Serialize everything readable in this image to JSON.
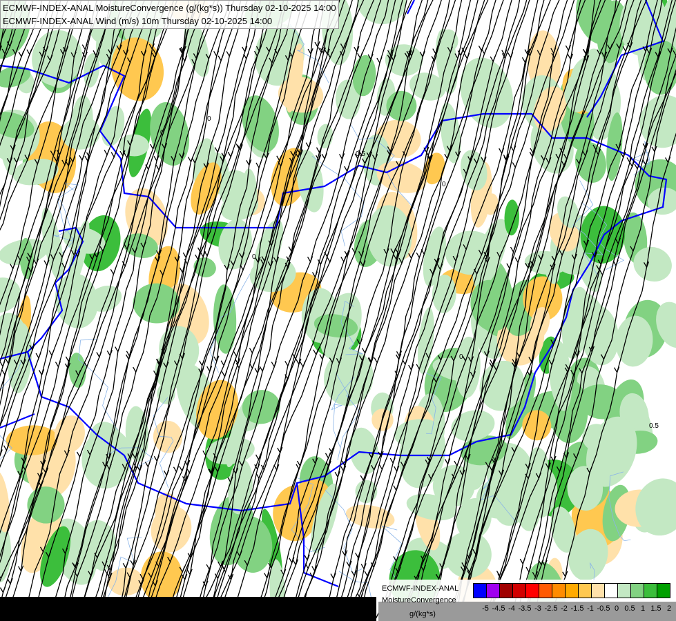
{
  "titles": [
    "ECMWF-INDEX-ANAL MoistureConvergence (g/(kg*s)) Thursday 02-10-2025 14:00",
    "ECMWF-INDEX-ANAL Wind (m/s) 10m Thursday 02-10-2025 14:00"
  ],
  "legend": {
    "model": "ECMWF-INDEX-ANAL",
    "field": "MoistureConvergence",
    "unit": "g/(kg*s)",
    "colors": [
      "#0000ff",
      "#a000f0",
      "#a00000",
      "#d20000",
      "#ff0000",
      "#ff5a00",
      "#ff8c00",
      "#ffaa00",
      "#ffc850",
      "#ffe1aa",
      "#ffffff",
      "#c3e8c3",
      "#82d282",
      "#3cbe3c",
      "#00a000"
    ],
    "labels": [
      "-5",
      "-4.5",
      "-4",
      "-3.5",
      "-3",
      "-2.5",
      "-2",
      "-1.5",
      "-1",
      "-0.5",
      "0",
      "0.5",
      "1",
      "1.5",
      "2"
    ]
  },
  "map": {
    "border_color": "#0000ff",
    "river_color": "#8ab4e8",
    "streamline_color": "#000000",
    "contour_labels": [
      "0",
      "0",
      "0.5",
      "0",
      "0",
      "0.5",
      "0"
    ]
  }
}
